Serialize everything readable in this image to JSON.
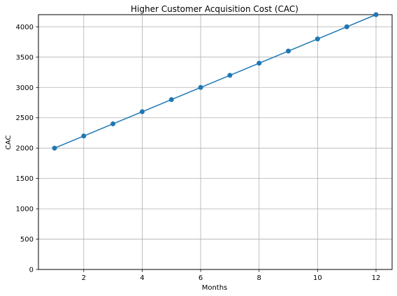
{
  "chart_data": {
    "type": "line",
    "title": "Higher Customer Acquisition Cost (CAC)",
    "xlabel": "Months",
    "ylabel": "CAC",
    "x": [
      1,
      2,
      3,
      4,
      5,
      6,
      7,
      8,
      9,
      10,
      11,
      12
    ],
    "series": [
      {
        "values": [
          2000,
          2200,
          2400,
          2600,
          2800,
          3000,
          3200,
          3400,
          3600,
          3800,
          4000,
          4200
        ],
        "color": "#1f77b4",
        "marker": "circle"
      }
    ],
    "xlim": [
      0.45,
      12.55
    ],
    "ylim": [
      0,
      4200
    ],
    "xticks": [
      2,
      4,
      6,
      8,
      10,
      12
    ],
    "yticks": [
      0,
      500,
      1000,
      1500,
      2000,
      2500,
      3000,
      3500,
      4000
    ],
    "grid": true,
    "legend": false
  }
}
